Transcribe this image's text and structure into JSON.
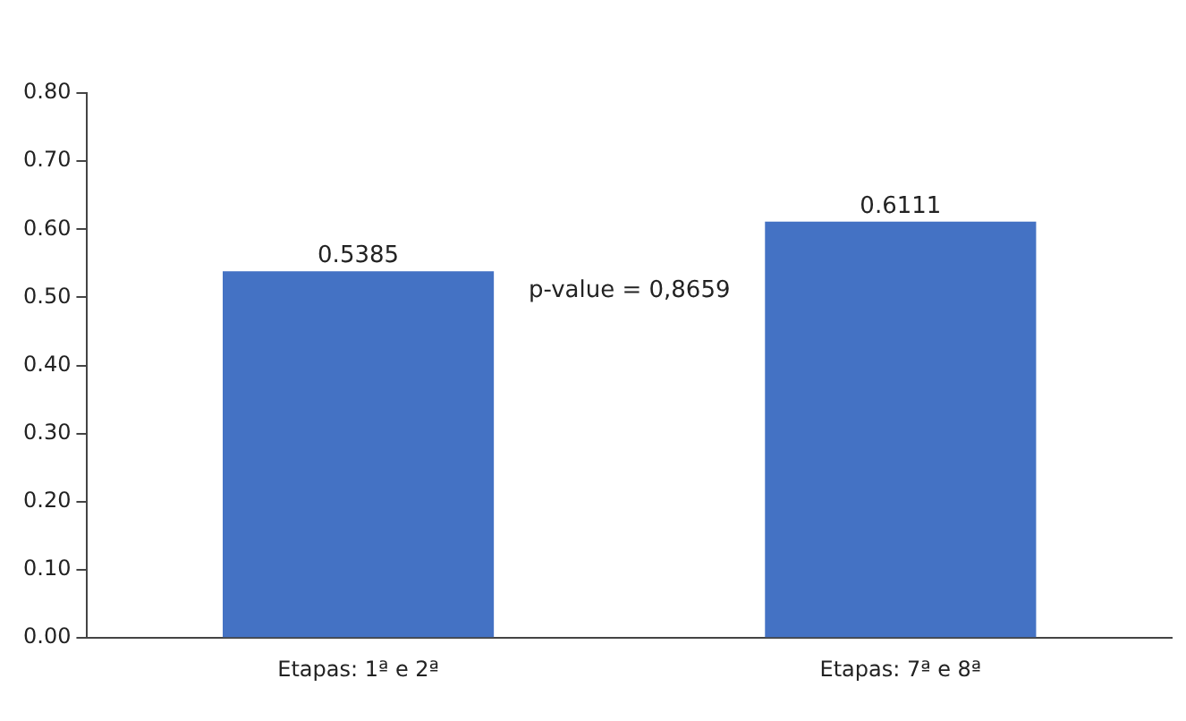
{
  "chart_data": {
    "type": "bar",
    "categories": [
      "Etapas: 1ª e 2ª",
      "Etapas: 7ª e 8ª"
    ],
    "values": [
      0.5385,
      0.6111
    ],
    "color": "#4472c4",
    "ylim": [
      0,
      0.8
    ],
    "yticks": [
      {
        "value": 0,
        "label": "0.00"
      },
      {
        "value": 0.1,
        "label": "0.10"
      },
      {
        "value": 0.2,
        "label": "0.20"
      },
      {
        "value": 0.3,
        "label": "0.30"
      },
      {
        "value": 0.4,
        "label": "0.40"
      },
      {
        "value": 0.5,
        "label": "0.50"
      },
      {
        "value": 0.6,
        "label": "0.60"
      },
      {
        "value": 0.7,
        "label": "0.70"
      },
      {
        "value": 0.8,
        "label": "0.80"
      }
    ],
    "grid": false,
    "legend": false,
    "data_labels": true,
    "annotations": [
      "p-value = 0,8659"
    ]
  }
}
